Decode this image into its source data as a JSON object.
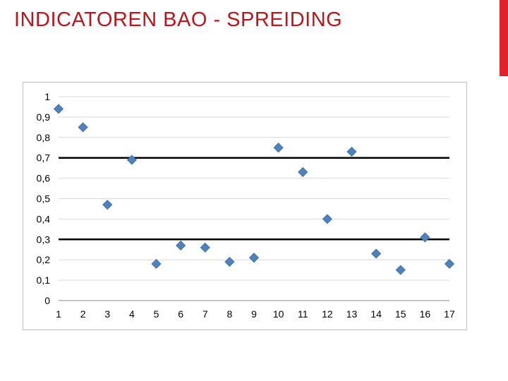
{
  "slide": {
    "title": "INDICATOREN BAO - SPREIDING",
    "title_color": "#c0141c",
    "accent_color": "#e0222a"
  },
  "chart_data": {
    "type": "scatter",
    "title": "",
    "xlabel": "",
    "ylabel": "",
    "xlim": [
      1,
      17
    ],
    "ylim": [
      0,
      1
    ],
    "x_ticks": [
      1,
      2,
      3,
      4,
      5,
      6,
      7,
      8,
      9,
      10,
      11,
      12,
      13,
      14,
      15,
      16,
      17
    ],
    "y_ticks": [
      "0",
      "0,1",
      "0,2",
      "0,3",
      "0,4",
      "0,5",
      "0,6",
      "0,7",
      "0,8",
      "0,9",
      "1"
    ],
    "grid": "horizontal",
    "legend": "none",
    "marker": "diamond",
    "marker_color": "#4f81bd",
    "series": [
      {
        "x": [
          1,
          2,
          3,
          4,
          5,
          6,
          7,
          8,
          9,
          10,
          11,
          12,
          13,
          14,
          15,
          16,
          17
        ],
        "values": [
          0.94,
          0.85,
          0.47,
          0.69,
          0.18,
          0.27,
          0.26,
          0.19,
          0.21,
          0.75,
          0.63,
          0.4,
          0.73,
          0.23,
          0.15,
          0.31,
          0.18
        ]
      }
    ],
    "reference_lines": [
      {
        "y": 0.7,
        "color": "#000000"
      },
      {
        "y": 0.3,
        "color": "#000000"
      }
    ]
  }
}
